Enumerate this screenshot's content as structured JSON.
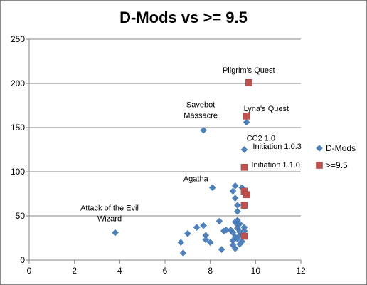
{
  "chart_data": {
    "type": "scatter",
    "title": "D-Mods vs >= 9.5",
    "xlabel": "",
    "ylabel": "",
    "xlim": [
      0,
      12
    ],
    "ylim": [
      0,
      250
    ],
    "x_ticks": [
      "0",
      "2",
      "4",
      "6",
      "8",
      "10",
      "12"
    ],
    "y_ticks": [
      "0",
      "50",
      "100",
      "150",
      "200",
      "250"
    ],
    "grid": "horizontal",
    "legend_position": "right",
    "series": [
      {
        "name": "D-Mods",
        "color": "#4f81bd",
        "marker": "diamond",
        "points": [
          [
            3.8,
            31
          ],
          [
            6.7,
            20
          ],
          [
            6.8,
            8
          ],
          [
            7.0,
            30
          ],
          [
            7.4,
            37
          ],
          [
            7.7,
            39
          ],
          [
            7.8,
            28
          ],
          [
            7.8,
            23
          ],
          [
            8.0,
            20
          ],
          [
            7.7,
            147
          ],
          [
            8.1,
            82
          ],
          [
            8.4,
            44
          ],
          [
            8.5,
            12
          ],
          [
            8.6,
            33
          ],
          [
            8.7,
            34
          ],
          [
            8.9,
            34
          ],
          [
            9.0,
            31
          ],
          [
            9.0,
            22
          ],
          [
            9.0,
            17
          ],
          [
            9.1,
            13
          ],
          [
            9.1,
            26
          ],
          [
            9.0,
            78
          ],
          [
            9.1,
            84
          ],
          [
            9.1,
            70
          ],
          [
            9.2,
            62
          ],
          [
            9.2,
            55
          ],
          [
            9.2,
            45
          ],
          [
            9.1,
            43
          ],
          [
            9.2,
            40
          ],
          [
            9.2,
            36
          ],
          [
            9.3,
            32
          ],
          [
            9.3,
            28
          ],
          [
            9.2,
            24
          ],
          [
            9.3,
            18
          ],
          [
            9.3,
            41
          ],
          [
            9.4,
            21
          ],
          [
            9.4,
            82
          ],
          [
            9.5,
            37
          ],
          [
            9.5,
            33
          ],
          [
            9.5,
            125
          ],
          [
            9.6,
            156
          ]
        ]
      },
      {
        "name": ">=9.5",
        "color": "#c0504d",
        "marker": "square",
        "points": [
          [
            9.7,
            201
          ],
          [
            9.6,
            163
          ],
          [
            9.5,
            105
          ],
          [
            9.5,
            78
          ],
          [
            9.6,
            74
          ],
          [
            9.5,
            62
          ],
          [
            9.5,
            27
          ]
        ]
      }
    ],
    "annotations": [
      {
        "lines": [
          "Pilgrim's Quest"
        ],
        "x": 9.7,
        "y": 201
      },
      {
        "lines": [
          "Lyna's Quest"
        ],
        "x": 9.6,
        "y": 163
      },
      {
        "lines": [
          "CC2 1.0"
        ],
        "x": 9.6,
        "y": 156
      },
      {
        "lines": [
          "Savebot",
          "Massacre"
        ],
        "x": 7.7,
        "y": 147
      },
      {
        "lines": [
          "Initiation 1.0.3"
        ],
        "x": 9.5,
        "y": 125
      },
      {
        "lines": [
          "Initiation 1.1.0"
        ],
        "x": 9.5,
        "y": 105
      },
      {
        "lines": [
          "Agatha"
        ],
        "x": 8.1,
        "y": 82
      },
      {
        "lines": [
          "Attack of the Evil",
          "Wizard"
        ],
        "x": 3.8,
        "y": 31
      }
    ]
  }
}
